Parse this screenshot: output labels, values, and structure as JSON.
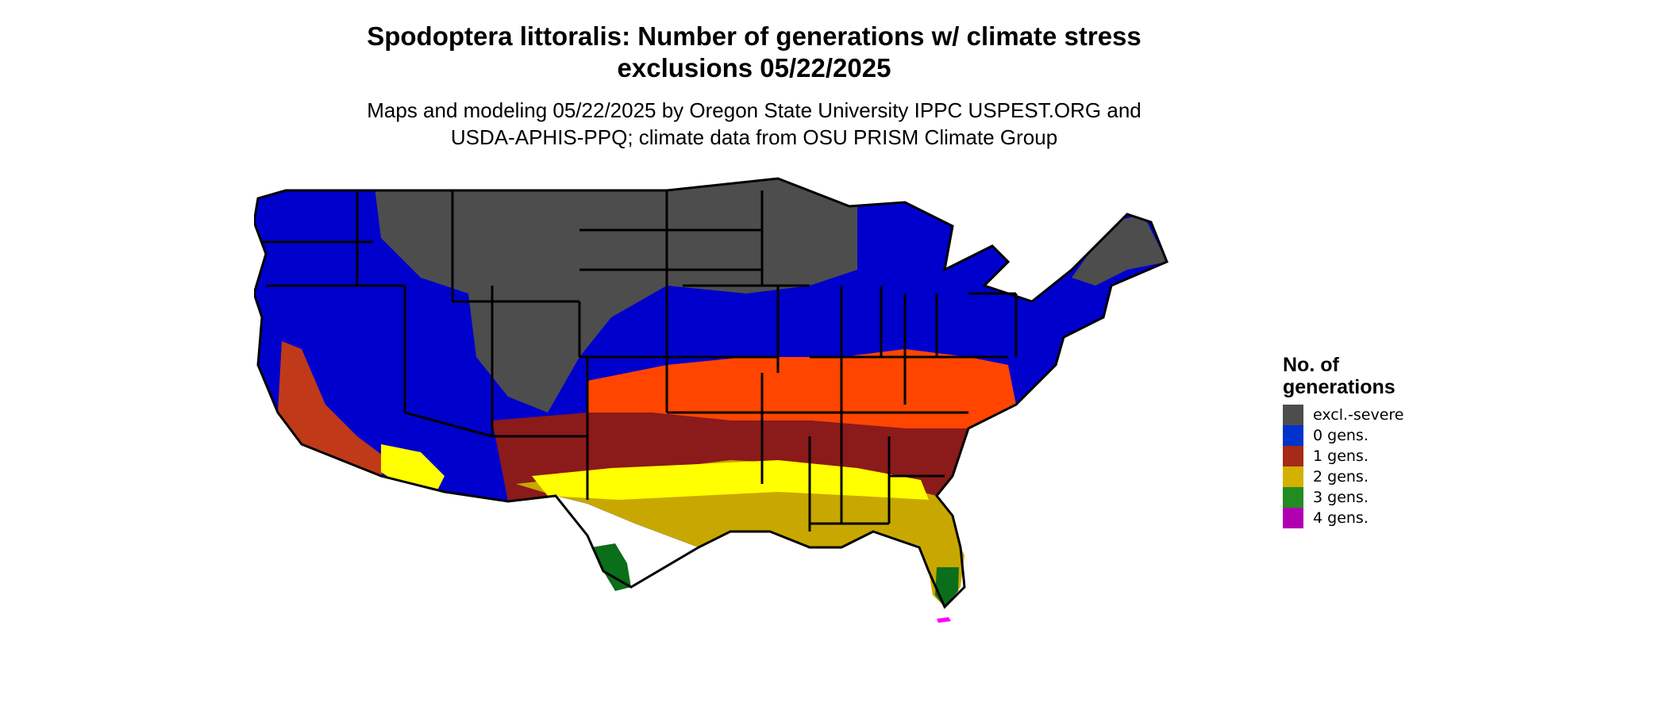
{
  "title": {
    "line1": "Spodoptera littoralis: Number of generations w/ climate stress",
    "line2": "exclusions 05/22/2025"
  },
  "subtitle": {
    "line1": "Maps and modeling 05/22/2025 by Oregon State University IPPC USPEST.ORG and",
    "line2": "USDA-APHIS-PPQ; climate data from OSU PRISM Climate Group"
  },
  "legend": {
    "title_line1": "No. of",
    "title_line2": "generations",
    "items": [
      {
        "label": "excl.-severe",
        "color": "#4d4d4d"
      },
      {
        "label": "0 gens.",
        "color": "#0033cc"
      },
      {
        "label": "1 gens.",
        "color": "#a52a18"
      },
      {
        "label": "2 gens.",
        "color": "#d4b000"
      },
      {
        "label": "3 gens.",
        "color": "#228b22"
      },
      {
        "label": "4 gens.",
        "color": "#b000b0"
      }
    ]
  },
  "map_colors": {
    "excluded": "#4d4d4d",
    "zero": "#0000cc",
    "one_dark": "#8b1a1a",
    "one_mid": "#c03a1a",
    "one_light": "#ff4500",
    "two_dark": "#c8a800",
    "two_light": "#ffff00",
    "three_light": "#7fe08f",
    "three_dark": "#0a6e1a",
    "four": "#ff00ff"
  }
}
